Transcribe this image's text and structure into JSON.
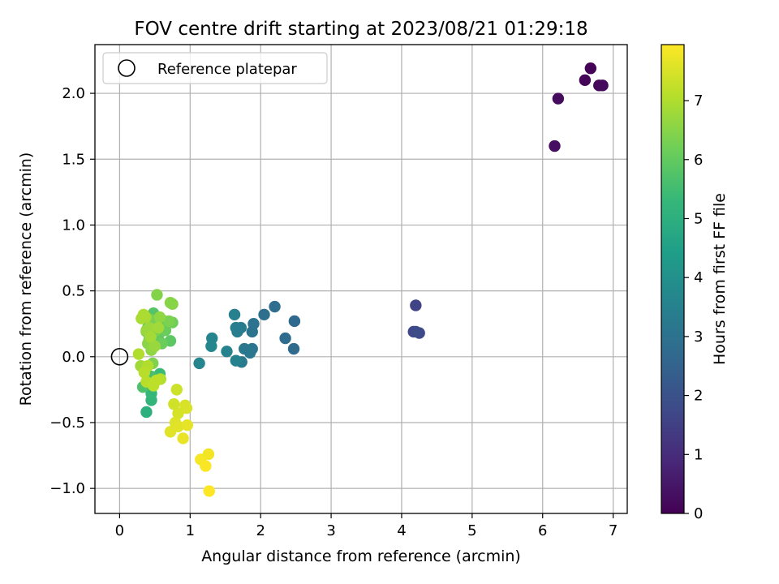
{
  "chart_data": {
    "type": "scatter",
    "title": "FOV centre drift starting at 2023/08/21 01:29:18",
    "xlabel": "Angular distance from reference (arcmin)",
    "ylabel": "Rotation from reference (arcmin)",
    "xlim": [
      -0.35,
      7.2
    ],
    "ylim": [
      -1.19,
      2.37
    ],
    "xticks": [
      0,
      1,
      2,
      3,
      4,
      5,
      6,
      7
    ],
    "yticks": [
      -1.0,
      -0.5,
      0.0,
      0.5,
      1.0,
      1.5,
      2.0,
      2.5
    ],
    "xtick_labels": [
      "0",
      "1",
      "2",
      "3",
      "4",
      "5",
      "6",
      "7"
    ],
    "ytick_labels": [
      "−1.0",
      "−0.5",
      "0.0",
      "0.5",
      "1.0",
      "1.5",
      "2.0"
    ],
    "grid": true,
    "legend": {
      "position": "top-left",
      "entries": [
        {
          "label": "Reference platepar",
          "marker": "open-circle"
        }
      ]
    },
    "reference_point": {
      "x": 0,
      "y": 0
    },
    "colorbar": {
      "label": "Hours from first FF file",
      "range": [
        0,
        7.95
      ],
      "ticks": [
        0,
        1,
        2,
        3,
        4,
        5,
        6,
        7
      ],
      "tick_labels": [
        "0",
        "1",
        "2",
        "3",
        "4",
        "5",
        "6",
        "7"
      ],
      "colormap": "viridis"
    },
    "points": [
      {
        "x": 6.68,
        "y": 2.19,
        "c": 0.05
      },
      {
        "x": 6.6,
        "y": 2.1,
        "c": 0.1
      },
      {
        "x": 6.8,
        "y": 2.06,
        "c": 0.15
      },
      {
        "x": 6.85,
        "y": 2.06,
        "c": 0.2
      },
      {
        "x": 6.22,
        "y": 1.96,
        "c": 0.25
      },
      {
        "x": 6.17,
        "y": 1.6,
        "c": 0.3
      },
      {
        "x": 4.2,
        "y": 0.39,
        "c": 1.6
      },
      {
        "x": 4.17,
        "y": 0.19,
        "c": 1.7
      },
      {
        "x": 4.25,
        "y": 0.18,
        "c": 1.75
      },
      {
        "x": 4.2,
        "y": 0.19,
        "c": 1.8
      },
      {
        "x": 2.48,
        "y": 0.27,
        "c": 2.7
      },
      {
        "x": 2.47,
        "y": 0.06,
        "c": 2.75
      },
      {
        "x": 2.35,
        "y": 0.14,
        "c": 2.8
      },
      {
        "x": 2.2,
        "y": 0.38,
        "c": 2.85
      },
      {
        "x": 2.05,
        "y": 0.32,
        "c": 2.9
      },
      {
        "x": 1.9,
        "y": 0.25,
        "c": 3.0
      },
      {
        "x": 1.88,
        "y": 0.19,
        "c": 3.05
      },
      {
        "x": 1.88,
        "y": 0.06,
        "c": 3.1
      },
      {
        "x": 1.85,
        "y": 0.03,
        "c": 3.15
      },
      {
        "x": 1.77,
        "y": 0.06,
        "c": 3.2
      },
      {
        "x": 1.73,
        "y": -0.04,
        "c": 3.25
      },
      {
        "x": 1.72,
        "y": 0.22,
        "c": 3.3
      },
      {
        "x": 1.67,
        "y": 0.19,
        "c": 3.35
      },
      {
        "x": 1.65,
        "y": 0.22,
        "c": 3.4
      },
      {
        "x": 1.63,
        "y": 0.32,
        "c": 3.45
      },
      {
        "x": 1.65,
        "y": -0.03,
        "c": 3.5
      },
      {
        "x": 1.52,
        "y": 0.04,
        "c": 3.55
      },
      {
        "x": 1.31,
        "y": 0.14,
        "c": 3.6
      },
      {
        "x": 1.3,
        "y": 0.08,
        "c": 3.65
      },
      {
        "x": 1.13,
        "y": -0.05,
        "c": 3.7
      },
      {
        "x": 0.38,
        "y": -0.42,
        "c": 5.0
      },
      {
        "x": 0.45,
        "y": -0.33,
        "c": 5.2
      },
      {
        "x": 0.45,
        "y": -0.28,
        "c": 5.3
      },
      {
        "x": 0.57,
        "y": -0.13,
        "c": 5.4
      },
      {
        "x": 0.45,
        "y": -0.15,
        "c": 5.6
      },
      {
        "x": 0.33,
        "y": -0.23,
        "c": 5.7
      },
      {
        "x": 0.4,
        "y": 0.22,
        "c": 5.8
      },
      {
        "x": 0.48,
        "y": 0.33,
        "c": 5.8
      },
      {
        "x": 0.6,
        "y": 0.28,
        "c": 5.9
      },
      {
        "x": 0.72,
        "y": 0.12,
        "c": 5.9
      },
      {
        "x": 0.55,
        "y": 0.16,
        "c": 6.0
      },
      {
        "x": 0.5,
        "y": 0.25,
        "c": 6.0
      },
      {
        "x": 0.65,
        "y": 0.2,
        "c": 6.1
      },
      {
        "x": 0.6,
        "y": 0.1,
        "c": 6.1
      },
      {
        "x": 0.75,
        "y": 0.26,
        "c": 6.2
      },
      {
        "x": 0.42,
        "y": 0.13,
        "c": 6.2
      },
      {
        "x": 0.52,
        "y": 0.2,
        "c": 6.3
      },
      {
        "x": 0.45,
        "y": 0.28,
        "c": 6.3
      },
      {
        "x": 0.7,
        "y": 0.27,
        "c": 6.35
      },
      {
        "x": 0.38,
        "y": 0.19,
        "c": 6.4
      },
      {
        "x": 0.47,
        "y": -0.05,
        "c": 6.4
      },
      {
        "x": 0.53,
        "y": 0.47,
        "c": 6.45
      },
      {
        "x": 0.72,
        "y": 0.41,
        "c": 6.5
      },
      {
        "x": 0.75,
        "y": 0.4,
        "c": 6.5
      },
      {
        "x": 0.4,
        "y": 0.1,
        "c": 6.55
      },
      {
        "x": 0.45,
        "y": 0.05,
        "c": 6.6
      },
      {
        "x": 0.57,
        "y": 0.3,
        "c": 6.6
      },
      {
        "x": 0.35,
        "y": 0.3,
        "c": 6.65
      },
      {
        "x": 0.5,
        "y": 0.08,
        "c": 6.7
      },
      {
        "x": 0.38,
        "y": 0.2,
        "c": 6.7
      },
      {
        "x": 0.42,
        "y": 0.22,
        "c": 6.75
      },
      {
        "x": 0.3,
        "y": -0.07,
        "c": 6.8
      },
      {
        "x": 0.55,
        "y": 0.22,
        "c": 6.8
      },
      {
        "x": 0.44,
        "y": 0.15,
        "c": 6.85
      },
      {
        "x": 0.37,
        "y": 0.3,
        "c": 6.9
      },
      {
        "x": 0.31,
        "y": 0.29,
        "c": 6.9
      },
      {
        "x": 0.34,
        "y": 0.32,
        "c": 6.95
      },
      {
        "x": 0.27,
        "y": 0.02,
        "c": 7.0
      },
      {
        "x": 0.4,
        "y": -0.07,
        "c": 7.0
      },
      {
        "x": 0.48,
        "y": -0.2,
        "c": 7.05
      },
      {
        "x": 0.58,
        "y": -0.17,
        "c": 7.05
      },
      {
        "x": 0.38,
        "y": -0.19,
        "c": 7.1
      },
      {
        "x": 0.35,
        "y": -0.12,
        "c": 7.1
      },
      {
        "x": 0.52,
        "y": -0.18,
        "c": 7.15
      },
      {
        "x": 0.48,
        "y": -0.22,
        "c": 7.15
      },
      {
        "x": 0.81,
        "y": -0.25,
        "c": 7.35
      },
      {
        "x": 0.77,
        "y": -0.36,
        "c": 7.4
      },
      {
        "x": 0.83,
        "y": -0.43,
        "c": 7.45
      },
      {
        "x": 0.93,
        "y": -0.37,
        "c": 7.5
      },
      {
        "x": 0.95,
        "y": -0.39,
        "c": 7.5
      },
      {
        "x": 0.79,
        "y": -0.5,
        "c": 7.55
      },
      {
        "x": 0.83,
        "y": -0.53,
        "c": 7.6
      },
      {
        "x": 0.72,
        "y": -0.57,
        "c": 7.6
      },
      {
        "x": 0.96,
        "y": -0.52,
        "c": 7.65
      },
      {
        "x": 0.9,
        "y": -0.62,
        "c": 7.7
      },
      {
        "x": 1.26,
        "y": -0.74,
        "c": 7.8
      },
      {
        "x": 1.15,
        "y": -0.78,
        "c": 7.85
      },
      {
        "x": 1.22,
        "y": -0.83,
        "c": 7.9
      },
      {
        "x": 1.27,
        "y": -1.02,
        "c": 7.95
      }
    ]
  }
}
